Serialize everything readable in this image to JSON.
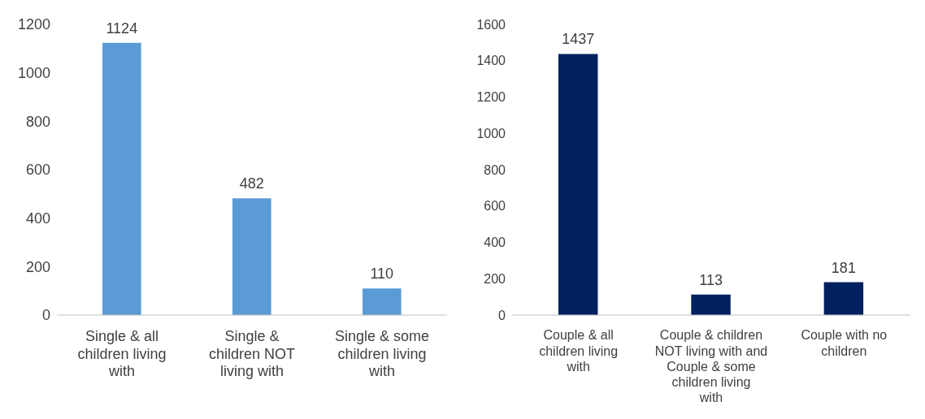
{
  "chart_data": [
    {
      "type": "bar",
      "categories": [
        "Single & all children living with",
        "Single & children NOT living with",
        "Single & some children living with"
      ],
      "values": [
        1124,
        482,
        110
      ],
      "color": "#5b9bd5",
      "ylim": [
        0,
        1200
      ],
      "yticks": [
        0,
        200,
        400,
        600,
        800,
        1000,
        1200
      ],
      "data_labels": true,
      "grid": false
    },
    {
      "type": "bar",
      "categories": [
        "Couple & all children living with",
        "Couple & children NOT living with and Couple & some children living with",
        "Couple with no children"
      ],
      "values": [
        1437,
        113,
        181
      ],
      "color": "#002060",
      "ylim": [
        0,
        1600
      ],
      "yticks": [
        0,
        200,
        400,
        600,
        800,
        1000,
        1200,
        1400,
        1600
      ],
      "data_labels": true,
      "grid": false
    }
  ]
}
